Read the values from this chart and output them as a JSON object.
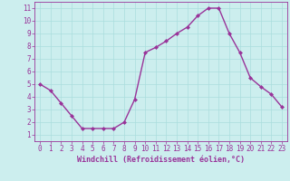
{
  "x": [
    0,
    1,
    2,
    3,
    4,
    5,
    6,
    7,
    8,
    9,
    10,
    11,
    12,
    13,
    14,
    15,
    16,
    17,
    18,
    19,
    20,
    21,
    22,
    23
  ],
  "y": [
    5,
    4.5,
    3.5,
    2.5,
    1.5,
    1.5,
    1.5,
    1.5,
    2.0,
    3.8,
    7.5,
    7.9,
    8.4,
    9.0,
    9.5,
    10.4,
    11.0,
    11.0,
    9.0,
    7.5,
    5.5,
    4.8,
    4.2,
    3.2
  ],
  "line_color": "#993399",
  "marker": "D",
  "marker_size": 2,
  "background_color": "#cceeee",
  "grid_color": "#aadddd",
  "xlabel": "Windchill (Refroidissement éolien,°C)",
  "xlabel_color": "#993399",
  "tick_color": "#993399",
  "xlim": [
    -0.5,
    23.5
  ],
  "ylim": [
    0.5,
    11.5
  ],
  "xticks": [
    0,
    1,
    2,
    3,
    4,
    5,
    6,
    7,
    8,
    9,
    10,
    11,
    12,
    13,
    14,
    15,
    16,
    17,
    18,
    19,
    20,
    21,
    22,
    23
  ],
  "yticks": [
    1,
    2,
    3,
    4,
    5,
    6,
    7,
    8,
    9,
    10,
    11
  ],
  "line_width": 1.0,
  "tick_fontsize": 5.5,
  "xlabel_fontsize": 6.0
}
